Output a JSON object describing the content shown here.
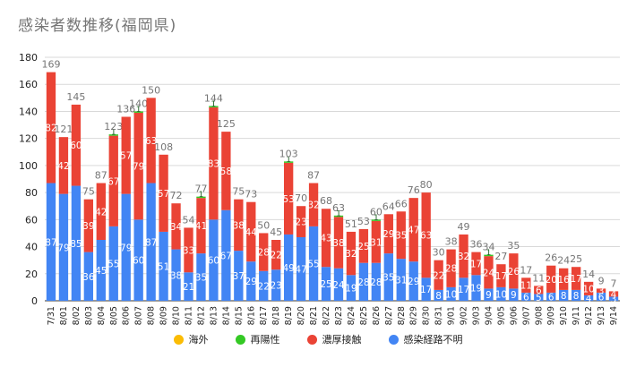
{
  "chart_data": {
    "type": "bar",
    "stacked": true,
    "title": "感染者数推移(福岡県)",
    "xlabel": "",
    "ylabel": "",
    "ylim": [
      0,
      180
    ],
    "yticks": [
      0,
      20,
      40,
      60,
      80,
      100,
      120,
      140,
      160,
      180
    ],
    "grid": true,
    "legend_position": "bottom",
    "categories": [
      "7/31",
      "8/01",
      "8/02",
      "8/03",
      "8/04",
      "8/05",
      "8/06",
      "8/07",
      "8/08",
      "8/09",
      "8/10",
      "8/11",
      "8/12",
      "8/13",
      "8/14",
      "8/15",
      "8/16",
      "8/17",
      "8/18",
      "8/19",
      "8/20",
      "8/21",
      "8/22",
      "8/23",
      "8/24",
      "8/25",
      "8/26",
      "8/27",
      "8/28",
      "8/29",
      "8/30",
      "8/31",
      "9/01",
      "9/02",
      "9/03",
      "9/04",
      "9/05",
      "9/06",
      "9/07",
      "9/08",
      "9/09",
      "9/10",
      "9/11",
      "9/12",
      "9/13",
      "9/14"
    ],
    "series": [
      {
        "name": "感染経路不明",
        "color": "#4285f4",
        "values": [
          87,
          79,
          85,
          36,
          45,
          55,
          79,
          60,
          87,
          51,
          38,
          21,
          35,
          60,
          67,
          37,
          29,
          22,
          23,
          49,
          47,
          55,
          25,
          24,
          19,
          28,
          28,
          35,
          31,
          29,
          17,
          8,
          10,
          17,
          19,
          9,
          10,
          9,
          6,
          5,
          6,
          8,
          8,
          4,
          6,
          3
        ]
      },
      {
        "name": "濃厚接触",
        "color": "#ea4335",
        "values": [
          82,
          42,
          60,
          39,
          42,
          67,
          57,
          79,
          63,
          57,
          34,
          33,
          41,
          83,
          58,
          38,
          44,
          28,
          22,
          53,
          23,
          32,
          43,
          38,
          32,
          25,
          31,
          29,
          35,
          47,
          63,
          22,
          28,
          32,
          17,
          24,
          17,
          26,
          11,
          6,
          20,
          16,
          17,
          10,
          3,
          4
        ]
      },
      {
        "name": "再陽性",
        "color": "#34c924",
        "values": [
          0,
          0,
          0,
          0,
          0,
          1,
          0,
          1,
          0,
          0,
          0,
          0,
          1,
          1,
          0,
          0,
          0,
          0,
          0,
          1,
          0,
          0,
          0,
          1,
          0,
          0,
          1,
          0,
          0,
          0,
          0,
          0,
          0,
          0,
          0,
          1,
          0,
          0,
          0,
          0,
          0,
          0,
          0,
          0,
          0,
          0
        ]
      },
      {
        "name": "海外",
        "color": "#fbbc04",
        "values": [
          0,
          0,
          0,
          0,
          0,
          0,
          0,
          0,
          0,
          0,
          0,
          0,
          0,
          0,
          0,
          0,
          0,
          0,
          0,
          0,
          0,
          0,
          0,
          0,
          0,
          0,
          0,
          0,
          0,
          0,
          0,
          0,
          0,
          0,
          0,
          0,
          0,
          0,
          0,
          0,
          0,
          0,
          0,
          0,
          0,
          0
        ]
      }
    ],
    "totals": [
      169,
      121,
      145,
      75,
      87,
      123,
      136,
      140,
      150,
      108,
      72,
      54,
      77,
      144,
      125,
      75,
      73,
      50,
      45,
      103,
      70,
      87,
      68,
      63,
      51,
      53,
      60,
      64,
      66,
      76,
      80,
      30,
      38,
      49,
      36,
      34,
      27,
      35,
      17,
      11,
      26,
      24,
      25,
      14,
      9,
      7
    ]
  },
  "legend": [
    {
      "label": "海外",
      "color": "#fbbc04"
    },
    {
      "label": "再陽性",
      "color": "#34c924"
    },
    {
      "label": "濃厚接触",
      "color": "#ea4335"
    },
    {
      "label": "感染経路不明",
      "color": "#4285f4"
    }
  ]
}
